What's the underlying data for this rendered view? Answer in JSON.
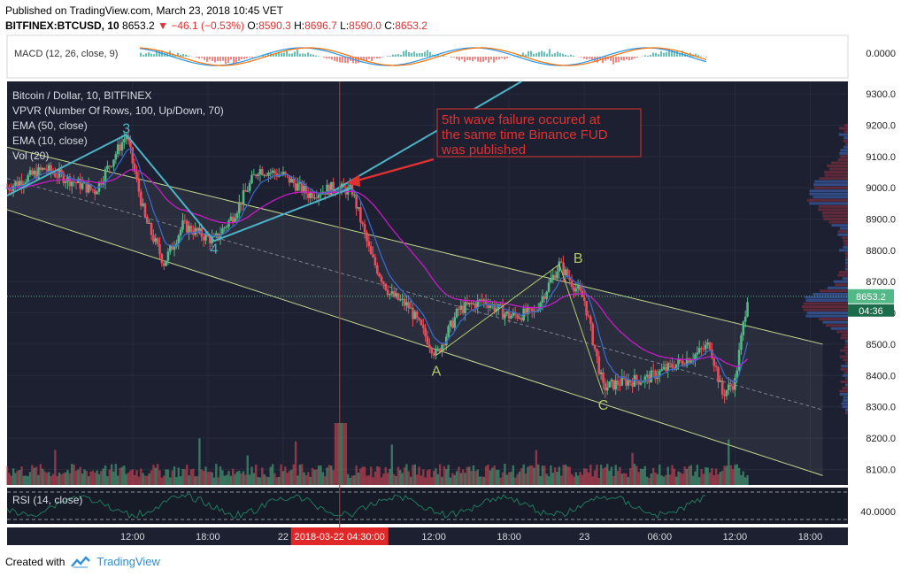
{
  "header": {
    "published": "Published on TradingView.com, March 23, 2018 10:45 VET",
    "symbol": "BITFINEX:BTCUSD, 10",
    "last": "8653.2",
    "change": "−46.1 (−0.53%)",
    "o_label": "O:",
    "o": "8590.3",
    "h_label": "H:",
    "h": "8696.7",
    "l_label": "L:",
    "l": "8590.0",
    "c_label": "C:",
    "c": "8653.2"
  },
  "footer": {
    "created_with": "Created with",
    "brand": "TradingView"
  },
  "colors": {
    "up": "#53b987",
    "down": "#eb4d5c",
    "ema50": "#c71cc7",
    "ema10": "#3b68c8",
    "channel": "#c4d98e",
    "wave": "#4db3c8",
    "abc": "#b5c96a",
    "annotation": "#e03030",
    "rsi": "#1f7a5a",
    "grid": "#e9edf2",
    "pane_bg": "#1c2030"
  },
  "chart_data": {
    "type": "candlestick",
    "price_axis": [
      9300,
      9200,
      9100,
      9000,
      8900,
      8800,
      8700,
      8600,
      8500,
      8400,
      8300,
      8200,
      8100
    ],
    "price_axis_labels": [
      "9300.0",
      "9200.0",
      "9100.0",
      "9000.0",
      "8900.0",
      "8800.0",
      "8700.0",
      "8600.0",
      "8500.0",
      "8400.0",
      "8300.0",
      "8200.0",
      "8100.0"
    ],
    "ylim": [
      8050,
      9340
    ],
    "time_axis_labels": [
      "12:00",
      "18:00",
      "22",
      "12:00",
      "18:00",
      "23",
      "06:00",
      "12:00",
      "18:00"
    ],
    "time_axis_hours": [
      12,
      18,
      24,
      36,
      42,
      48,
      54,
      60,
      66
    ],
    "xlim_hours": [
      2,
      69
    ],
    "last_price_label": "8653.2",
    "countdown_label": "04:36",
    "cursor_time_label": "2018-03-22 04:30:00",
    "cursor_hour": 28.5,
    "legend": [
      "Bitcoin / Dollar, 10, BITFINEX",
      "VPVR (Number Of Rows, 100, Up/Down, 70)",
      "EMA (50, close)",
      "EMA (10, close)",
      "Vol (20)"
    ],
    "macd": {
      "label": "MACD (12, 26, close, 9)",
      "axis_label": "0.0000"
    },
    "rsi": {
      "label": "RSI (14, close)",
      "axis_label": "40.0000"
    },
    "annotation": {
      "text": [
        "5th wave failure occured at",
        "the same time Binance FUD",
        "was published"
      ]
    },
    "wave_labels": [
      {
        "text": "3",
        "hour": 11.5,
        "price": 9175
      },
      {
        "text": "4",
        "hour": 18.5,
        "price": 8790
      },
      {
        "text": "A",
        "hour": 36.2,
        "price": 8400
      },
      {
        "text": "B",
        "hour": 47.5,
        "price": 8760
      },
      {
        "text": "C",
        "hour": 49.5,
        "price": 8290
      }
    ],
    "wave_path": [
      [
        2,
        8975
      ],
      [
        11.5,
        9170
      ],
      [
        18.5,
        8830
      ],
      [
        29.5,
        9000
      ]
    ],
    "wave_path_extension": [
      [
        28,
        8990
      ],
      [
        43,
        9340
      ]
    ],
    "abc_path": [
      [
        36.2,
        8465
      ],
      [
        46,
        8755
      ],
      [
        49.5,
        8340
      ]
    ],
    "channel_upper": [
      [
        2,
        9130
      ],
      [
        67,
        8500
      ]
    ],
    "channel_lower": [
      [
        2,
        8930
      ],
      [
        67,
        8080
      ]
    ],
    "channel_mid": [
      [
        2,
        9030
      ],
      [
        67,
        8290
      ]
    ],
    "key_points": [
      [
        2,
        9000
      ],
      [
        5,
        9060
      ],
      [
        9,
        8990
      ],
      [
        11.5,
        9170
      ],
      [
        13,
        8900
      ],
      [
        14.5,
        8760
      ],
      [
        16,
        8880
      ],
      [
        18.5,
        8830
      ],
      [
        20,
        8910
      ],
      [
        22,
        9060
      ],
      [
        24,
        9040
      ],
      [
        26,
        8980
      ],
      [
        28,
        9000
      ],
      [
        29.5,
        8990
      ],
      [
        31,
        8780
      ],
      [
        32.5,
        8660
      ],
      [
        34,
        8620
      ],
      [
        36.2,
        8465
      ],
      [
        38,
        8610
      ],
      [
        40,
        8640
      ],
      [
        42,
        8590
      ],
      [
        44,
        8600
      ],
      [
        46,
        8755
      ],
      [
        48,
        8640
      ],
      [
        49.5,
        8360
      ],
      [
        51,
        8380
      ],
      [
        53,
        8390
      ],
      [
        55,
        8430
      ],
      [
        57,
        8470
      ],
      [
        58,
        8500
      ],
      [
        59,
        8340
      ],
      [
        60,
        8380
      ],
      [
        61,
        8653
      ]
    ]
  }
}
